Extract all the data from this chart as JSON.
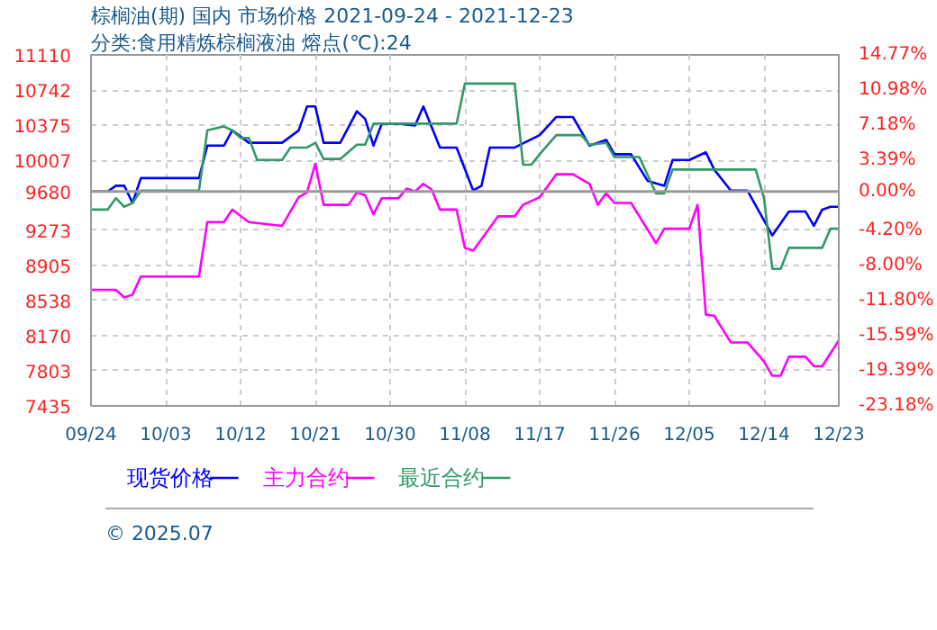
{
  "chart_data": {
    "type": "line",
    "title": "棕榈油(期) 国内 市场价格 2021-09-24 - 2021-12-23",
    "subtitle": "分类:食用精炼棕榈液油 熔点(℃):24",
    "xlim": [
      "2021-09-24",
      "2021-12-23"
    ],
    "xticks": [
      {
        "value": "2021-09-24",
        "label": "09/24"
      },
      {
        "value": "2021-10-03",
        "label": "10/03"
      },
      {
        "value": "2021-10-12",
        "label": "10/12"
      },
      {
        "value": "2021-10-21",
        "label": "10/21"
      },
      {
        "value": "2021-10-30",
        "label": "10/30"
      },
      {
        "value": "2021-11-08",
        "label": "11/08"
      },
      {
        "value": "2021-11-17",
        "label": "11/17"
      },
      {
        "value": "2021-11-26",
        "label": "11/26"
      },
      {
        "value": "2021-12-05",
        "label": "12/05"
      },
      {
        "value": "2021-12-14",
        "label": "12/14"
      },
      {
        "value": "2021-12-23",
        "label": "12/23"
      }
    ],
    "ylim": [
      7435,
      11110
    ],
    "yticks": [
      11110,
      10742,
      10375,
      10007,
      9680,
      9273,
      8905,
      8538,
      8170,
      7803,
      7435
    ],
    "y2lim": [
      -23.18,
      14.77
    ],
    "y2ticks": [
      {
        "value": 14.77,
        "label": "14.77%"
      },
      {
        "value": 10.98,
        "label": "10.98%"
      },
      {
        "value": 7.18,
        "label": "7.18%"
      },
      {
        "value": 3.39,
        "label": "3.39%"
      },
      {
        "value": 0,
        "label": "0.00%"
      },
      {
        "value": -4.2,
        "label": "-4.20%"
      },
      {
        "value": -8.0,
        "label": "-8.00%"
      },
      {
        "value": -11.8,
        "label": "-11.80%"
      },
      {
        "value": -15.59,
        "label": "-15.59%"
      },
      {
        "value": -19.39,
        "label": "-19.39%"
      },
      {
        "value": -23.18,
        "label": "-23.18%"
      }
    ],
    "grid": true,
    "legend": "bottom",
    "marker": "none",
    "line_style": "solid",
    "ref_lines": [
      {
        "axis": "y",
        "value": 9680,
        "color": "#999999"
      }
    ],
    "annotations": [
      "© 2025.07"
    ],
    "series": [
      {
        "name": "现货价格",
        "color": "#0000ff",
        "x": [
          "2021-09-24",
          "2021-09-26",
          "2021-09-27",
          "2021-09-28",
          "2021-09-29",
          "2021-09-30",
          "2021-10-07",
          "2021-10-08",
          "2021-10-10",
          "2021-10-11",
          "2021-10-13",
          "2021-10-17",
          "2021-10-19",
          "2021-10-20",
          "2021-10-21",
          "2021-10-22",
          "2021-10-24",
          "2021-10-26",
          "2021-10-27",
          "2021-10-28",
          "2021-10-29",
          "2021-10-31",
          "2021-11-02",
          "2021-11-03",
          "2021-11-05",
          "2021-11-07",
          "2021-11-09",
          "2021-11-10",
          "2021-11-11",
          "2021-11-14",
          "2021-11-17",
          "2021-11-19",
          "2021-11-21",
          "2021-11-23",
          "2021-11-25",
          "2021-11-26",
          "2021-11-28",
          "2021-11-30",
          "2021-12-02",
          "2021-12-03",
          "2021-12-05",
          "2021-12-07",
          "2021-12-08",
          "2021-12-10",
          "2021-12-12",
          "2021-12-15",
          "2021-12-17",
          "2021-12-19",
          "2021-12-20",
          "2021-12-21",
          "2021-12-22",
          "2021-12-23"
        ],
        "values": [
          9680,
          9680,
          9740,
          9740,
          9560,
          9820,
          9820,
          10160,
          10160,
          10320,
          10190,
          10190,
          10320,
          10570,
          10570,
          10190,
          10190,
          10520,
          10440,
          10160,
          10390,
          10390,
          10370,
          10570,
          10140,
          10140,
          9690,
          9740,
          10140,
          10140,
          10270,
          10460,
          10460,
          10160,
          10220,
          10070,
          10070,
          9790,
          9740,
          10010,
          10010,
          10090,
          9910,
          9690,
          9690,
          9220,
          9470,
          9470,
          9320,
          9490,
          9520,
          9520
        ]
      },
      {
        "name": "主力合约",
        "color": "#ff00ff",
        "x": [
          "2021-09-24",
          "2021-09-27",
          "2021-09-28",
          "2021-09-29",
          "2021-09-30",
          "2021-10-07",
          "2021-10-08",
          "2021-10-10",
          "2021-10-11",
          "2021-10-13",
          "2021-10-17",
          "2021-10-19",
          "2021-10-20",
          "2021-10-21",
          "2021-10-22",
          "2021-10-25",
          "2021-10-26",
          "2021-10-27",
          "2021-10-28",
          "2021-10-29",
          "2021-10-31",
          "2021-11-01",
          "2021-11-02",
          "2021-11-03",
          "2021-11-04",
          "2021-11-05",
          "2021-11-07",
          "2021-11-08",
          "2021-11-09",
          "2021-11-12",
          "2021-11-14",
          "2021-11-15",
          "2021-11-17",
          "2021-11-19",
          "2021-11-21",
          "2021-11-23",
          "2021-11-24",
          "2021-11-25",
          "2021-11-26",
          "2021-11-28",
          "2021-12-01",
          "2021-12-02",
          "2021-12-05",
          "2021-12-06",
          "2021-12-07",
          "2021-12-08",
          "2021-12-10",
          "2021-12-12",
          "2021-12-14",
          "2021-12-15",
          "2021-12-16",
          "2021-12-17",
          "2021-12-19",
          "2021-12-20",
          "2021-12-21",
          "2021-12-23"
        ],
        "values": [
          8650,
          8650,
          8570,
          8600,
          8790,
          8790,
          9360,
          9360,
          9490,
          9360,
          9320,
          9620,
          9670,
          9970,
          9540,
          9540,
          9670,
          9640,
          9440,
          9610,
          9610,
          9710,
          9680,
          9760,
          9700,
          9490,
          9490,
          9090,
          9060,
          9420,
          9420,
          9540,
          9620,
          9860,
          9860,
          9760,
          9540,
          9660,
          9560,
          9560,
          9140,
          9290,
          9290,
          9540,
          8390,
          8380,
          8100,
          8100,
          7900,
          7750,
          7750,
          7950,
          7950,
          7850,
          7850,
          8120
        ]
      },
      {
        "name": "最近合约",
        "color": "#339966",
        "x": [
          "2021-09-24",
          "2021-09-26",
          "2021-09-27",
          "2021-09-28",
          "2021-09-29",
          "2021-09-30",
          "2021-10-07",
          "2021-10-08",
          "2021-10-10",
          "2021-10-11",
          "2021-10-12",
          "2021-10-13",
          "2021-10-14",
          "2021-10-17",
          "2021-10-18",
          "2021-10-20",
          "2021-10-21",
          "2021-10-22",
          "2021-10-24",
          "2021-10-26",
          "2021-10-27",
          "2021-10-28",
          "2021-11-07",
          "2021-11-08",
          "2021-11-14",
          "2021-11-15",
          "2021-11-16",
          "2021-11-17",
          "2021-11-19",
          "2021-11-22",
          "2021-11-23",
          "2021-11-25",
          "2021-11-26",
          "2021-11-29",
          "2021-12-01",
          "2021-12-02",
          "2021-12-03",
          "2021-12-13",
          "2021-12-14",
          "2021-12-15",
          "2021-12-16",
          "2021-12-17",
          "2021-12-21",
          "2021-12-22",
          "2021-12-23"
        ],
        "values": [
          9490,
          9490,
          9610,
          9520,
          9560,
          9690,
          9690,
          10320,
          10360,
          10320,
          10240,
          10240,
          10010,
          10010,
          10140,
          10140,
          10190,
          10020,
          10020,
          10170,
          10170,
          10390,
          10390,
          10810,
          10810,
          9960,
          9960,
          10070,
          10270,
          10270,
          10170,
          10190,
          10040,
          10040,
          9660,
          9660,
          9910,
          9910,
          9610,
          8870,
          8870,
          9090,
          9090,
          9290,
          9290
        ]
      }
    ]
  }
}
